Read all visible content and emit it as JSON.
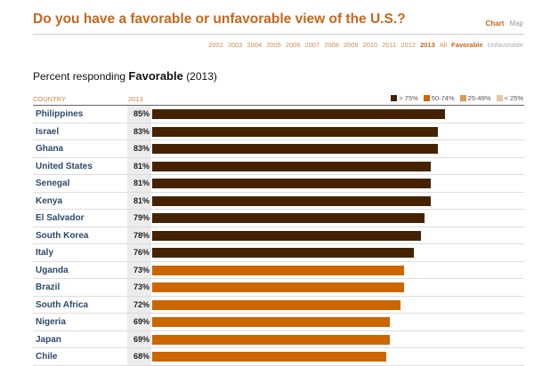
{
  "title": "Do you have a favorable or unfavorable view of the U.S.?",
  "views": [
    "Chart",
    "Map"
  ],
  "years": [
    "2002",
    "2003",
    "2004",
    "2005",
    "2006",
    "2007",
    "2008",
    "2009",
    "2010",
    "2011",
    "2012",
    "2013",
    "All"
  ],
  "measures": [
    "Favorable",
    "Unfavorable"
  ],
  "subtitle": {
    "prefix": "Percent responding",
    "measure": "Favorable",
    "year": "(2013)"
  },
  "chart_data": {
    "type": "bar",
    "col_country": "COUNTRY",
    "col_year": "2013",
    "legend": [
      {
        "label": "> 75%",
        "color": "#452201"
      },
      {
        "label": "50-74%",
        "color": "#cc6600"
      },
      {
        "label": "25-49%",
        "color": "#d9985c"
      },
      {
        "label": "< 25%",
        "color": "#e8c4a0"
      }
    ],
    "categories": [
      "Philippines",
      "Israel",
      "Ghana",
      "United States",
      "Senegal",
      "Kenya",
      "El Salvador",
      "South Korea",
      "Italy",
      "Uganda",
      "Brazil",
      "South Africa",
      "Nigeria",
      "Japan",
      "Chile"
    ],
    "values": [
      85,
      83,
      83,
      81,
      81,
      81,
      79,
      78,
      76,
      73,
      73,
      72,
      69,
      69,
      68
    ],
    "xlim": [
      0,
      100
    ]
  }
}
